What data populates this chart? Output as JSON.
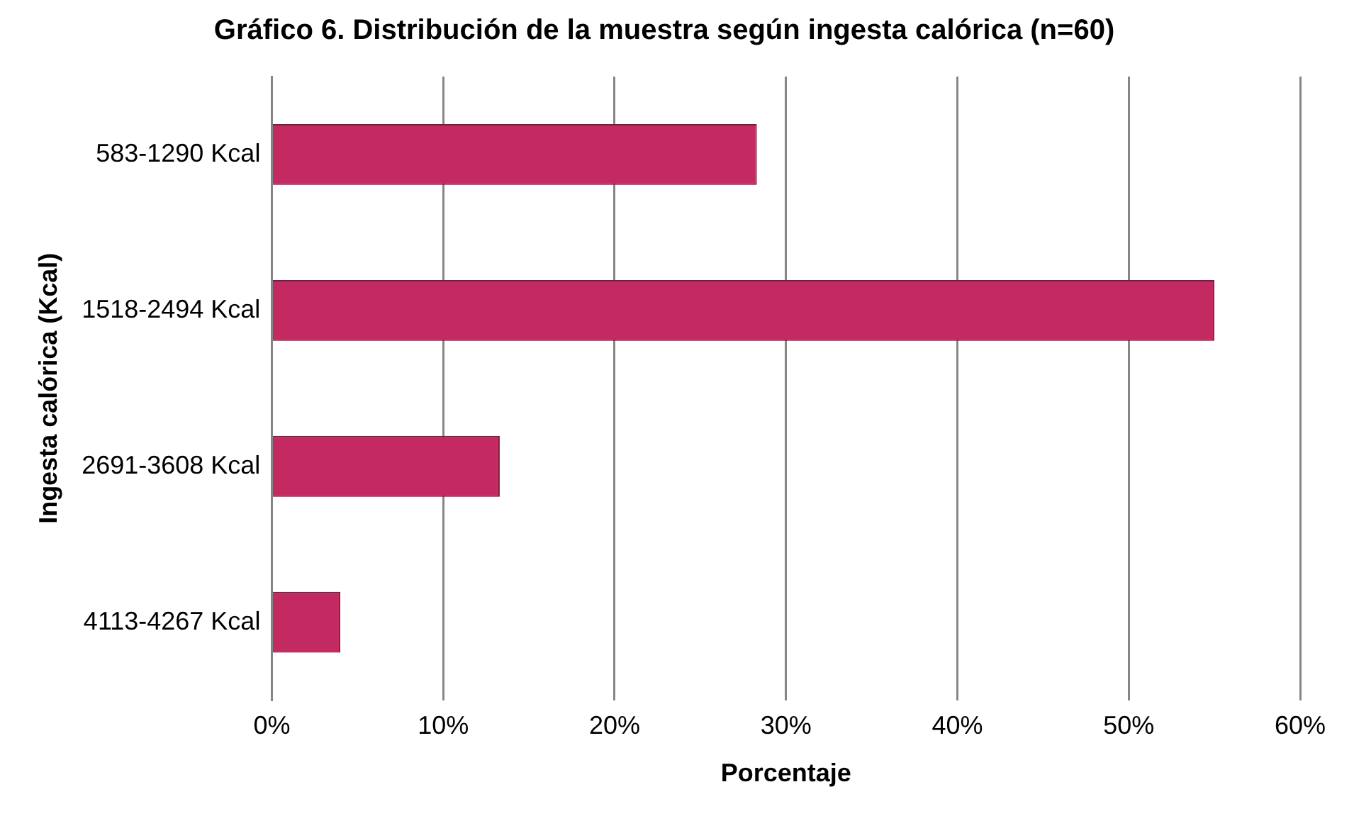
{
  "chart_data": {
    "type": "bar",
    "orientation": "horizontal",
    "title": "Gráfico 6. Distribución de la muestra según ingesta calórica (n=60)",
    "xlabel": "Porcentaje",
    "ylabel": "Ingesta calórica (Kcal)",
    "categories": [
      "583-1290 Kcal",
      "1518-2494 Kcal",
      "2691-3608 Kcal",
      "4113-4267 Kcal"
    ],
    "values": [
      28.3,
      55,
      13.3,
      4
    ],
    "color": "#c42a62",
    "xlim": [
      0,
      60
    ],
    "xticks": [
      {
        "value": 0,
        "label": "0%"
      },
      {
        "value": 10,
        "label": "10%"
      },
      {
        "value": 20,
        "label": "20%"
      },
      {
        "value": 30,
        "label": "30%"
      },
      {
        "value": 40,
        "label": "40%"
      },
      {
        "value": 50,
        "label": "50%"
      },
      {
        "value": 60,
        "label": "60%"
      }
    ],
    "grid": "x",
    "legend": false
  }
}
